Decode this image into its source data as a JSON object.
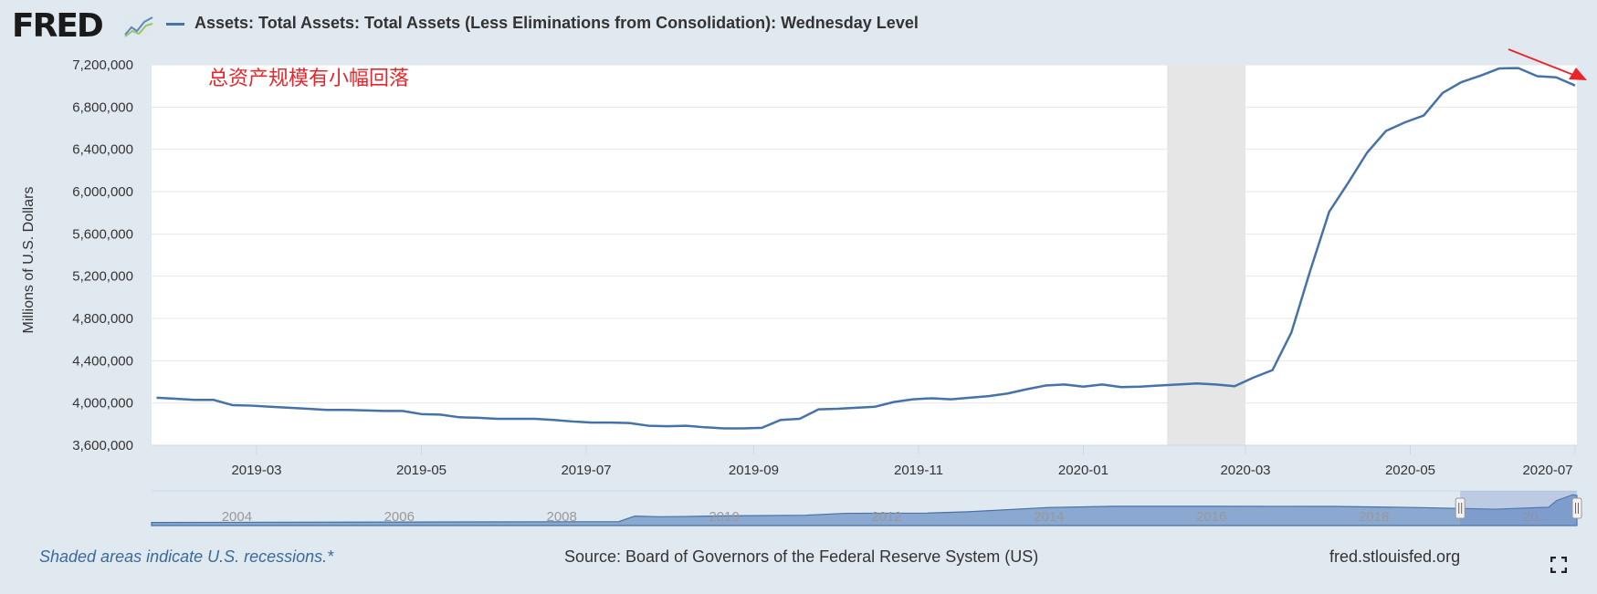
{
  "header": {
    "logo_text": "FRED",
    "title": "Assets: Total Assets: Total Assets (Less Eliminations from Consolidation): Wednesday Level"
  },
  "annotation": "总资产规模有小幅回落",
  "footer": {
    "recession_note": "Shaded areas indicate U.S. recessions.*",
    "source": "Source: Board of Governors of the Federal Reserve System (US)",
    "url": "fred.stlouisfed.org"
  },
  "colors": {
    "line": "#4572a7",
    "recession": "#e6e6e6",
    "annotation": "#e8262a",
    "background": "#e1e9f0"
  },
  "chart_data": {
    "type": "line",
    "title": "Assets: Total Assets: Total Assets (Less Eliminations from Consolidation): Wednesday Level",
    "xlabel": "",
    "ylabel": "Millions of U.S. Dollars",
    "frequency": "weekly",
    "x_start": "2019-01-23",
    "x_end": "2020-07-01",
    "ylim": [
      3600000,
      7200000
    ],
    "yticks": [
      3600000,
      4000000,
      4400000,
      4800000,
      5200000,
      5600000,
      6000000,
      6400000,
      6800000,
      7200000
    ],
    "ytick_labels": [
      "3,600,000",
      "4,000,000",
      "4,400,000",
      "4,800,000",
      "5,200,000",
      "5,600,000",
      "6,000,000",
      "6,400,000",
      "6,800,000",
      "7,200,000"
    ],
    "xticks": [
      "2019-03-01",
      "2019-05-01",
      "2019-07-01",
      "2019-09-01",
      "2019-11-01",
      "2020-01-01",
      "2020-03-01",
      "2020-05-01",
      "2020-07-01"
    ],
    "xtick_labels": [
      "2019-03",
      "2019-05",
      "2019-07",
      "2019-09",
      "2019-11",
      "2020-01",
      "2020-03",
      "2020-05",
      "2020-07"
    ],
    "grid": true,
    "recessions": [
      [
        "2020-02-01",
        "2020-03-01"
      ]
    ],
    "series": [
      {
        "name": "Assets: Total Assets: Total Assets (Less Eliminations from Consolidation): Wednesday Level",
        "values": [
          4050000,
          4040000,
          4030000,
          4030000,
          3980000,
          3975000,
          3965000,
          3955000,
          3945000,
          3935000,
          3935000,
          3930000,
          3925000,
          3925000,
          3895000,
          3890000,
          3865000,
          3860000,
          3850000,
          3850000,
          3850000,
          3840000,
          3825000,
          3815000,
          3815000,
          3810000,
          3785000,
          3780000,
          3785000,
          3770000,
          3760000,
          3760000,
          3765000,
          3840000,
          3850000,
          3940000,
          3945000,
          3955000,
          3965000,
          4010000,
          4035000,
          4045000,
          4035000,
          4050000,
          4065000,
          4090000,
          4130000,
          4165000,
          4175000,
          4155000,
          4175000,
          4150000,
          4155000,
          4165000,
          4175000,
          4185000,
          4175000,
          4159000,
          4241000,
          4311000,
          4667000,
          5254000,
          5810000,
          6083000,
          6368000,
          6574000,
          6655000,
          6720000,
          6934000,
          7037000,
          7097000,
          7166000,
          7169000,
          7092000,
          7081000,
          7004000
        ]
      }
    ],
    "navigator": {
      "tick_labels": [
        "2004",
        "2006",
        "2008",
        "2010",
        "2012",
        "2014",
        "2016",
        "2018",
        "20..."
      ],
      "tick_years": [
        2004,
        2006,
        2008,
        2010,
        2012,
        2014,
        2016,
        2018,
        2020
      ],
      "x_range": [
        2002.95,
        2020.5
      ],
      "selected_range": [
        "2019-01-23",
        "2020-07-01"
      ],
      "years": [
        2002.95,
        2008.7,
        2008.9,
        2009.2,
        2009.5,
        2010.0,
        2011.0,
        2011.5,
        2012.5,
        2013.0,
        2014.0,
        2014.8,
        2016.0,
        2017.5,
        2018.5,
        2019.5,
        2020.0,
        2020.15,
        2020.25,
        2020.45,
        2020.5
      ],
      "values": [
        720000,
        900000,
        2200000,
        2050000,
        2100000,
        2250000,
        2400000,
        2850000,
        2900000,
        3200000,
        4200000,
        4480000,
        4470000,
        4450000,
        4200000,
        3800000,
        4150000,
        4240000,
        5800000,
        7160000,
        7000000
      ]
    }
  }
}
